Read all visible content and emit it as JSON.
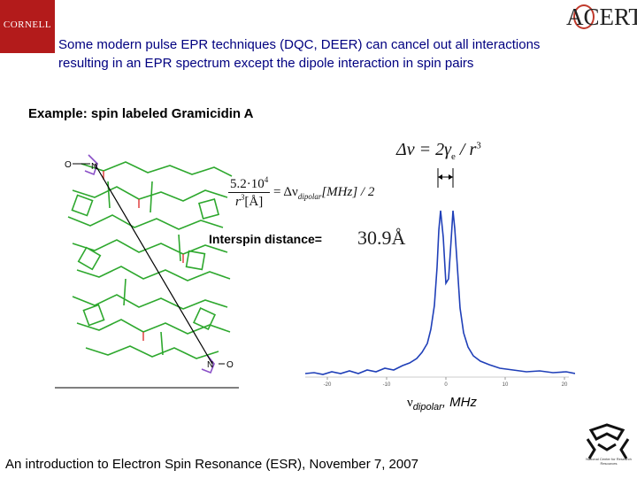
{
  "header": {
    "cornell_logo": "CORNELL",
    "acert_logo": "ACERT",
    "intro_line1": "Some modern pulse EPR techniques (DQC, DEER) can cancel out all interactions",
    "intro_line2": "resulting in an EPR spectrum except the dipole interaction in spin pairs"
  },
  "content": {
    "example_label": "Example: spin labeled Gramicidin A",
    "formula_top_lhs": "Δν = 2γ",
    "formula_top_sub": "e",
    "formula_top_rhs": " / r",
    "formula_top_exp": "3",
    "formula_main_num": "5.2·10",
    "formula_main_num_exp": "4",
    "formula_main_den": "r",
    "formula_main_den_exp": "3",
    "formula_main_den_unit": "[Å]",
    "formula_main_rhs": "= Δν",
    "formula_main_rhs_sub": "dipolar",
    "formula_main_rhs_tail": "[MHz] / 2",
    "interspin_label": "Interspin distance=",
    "interspin_value": "30.9Å",
    "xaxis_nu": "ν",
    "xaxis_sub": "dipolar",
    "xaxis_unit": ", MHz",
    "molecule_labels": [
      "N",
      "O",
      "N",
      "O"
    ]
  },
  "chart_data": {
    "type": "line",
    "x_ticks": [
      -20,
      -10,
      0,
      10,
      20
    ],
    "xlim": [
      -20,
      20
    ],
    "xlabel": "νdipolar, MHz",
    "ylabel": "",
    "peak_separation_marker": "Δν"
  },
  "footer": {
    "text": "An introduction to Electron Spin Resonance (ESR), November 7, 2007",
    "nhmfl_logo": "National Center for Research Resources"
  },
  "colors": {
    "cornell_red": "#b31b1b",
    "intro_blue": "#000080",
    "spectrum_blue": "#1f3fb8",
    "molecule_green": "#2ea82e",
    "molecule_purple": "#8a4fc7"
  }
}
